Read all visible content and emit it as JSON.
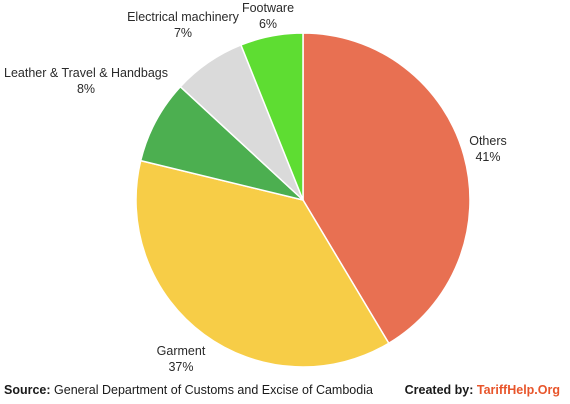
{
  "chart_data": {
    "type": "pie",
    "slices": [
      {
        "label": "Others",
        "value": 41,
        "value_label": "41%",
        "color": "#E87052"
      },
      {
        "label": "Garment",
        "value": 37,
        "value_label": "37%",
        "color": "#F7CD47"
      },
      {
        "label": "Leather & Travel & Handbags",
        "value": 8,
        "value_label": "8%",
        "color": "#4CAF50"
      },
      {
        "label": "Electrical machinery",
        "value": 7,
        "value_label": "7%",
        "color": "#DADADA"
      },
      {
        "label": "Footware",
        "value": 6,
        "value_label": "6%",
        "color": "#5EDD32"
      }
    ],
    "start": "12 o'clock",
    "direction": "clockwise"
  },
  "footer": {
    "source_label": "Source:",
    "source_text": " General Department of Customs and Excise of Cambodia",
    "created_label": "Created by: ",
    "brand": "TariffHelp.Org",
    "brand_color": "#E8552B"
  }
}
